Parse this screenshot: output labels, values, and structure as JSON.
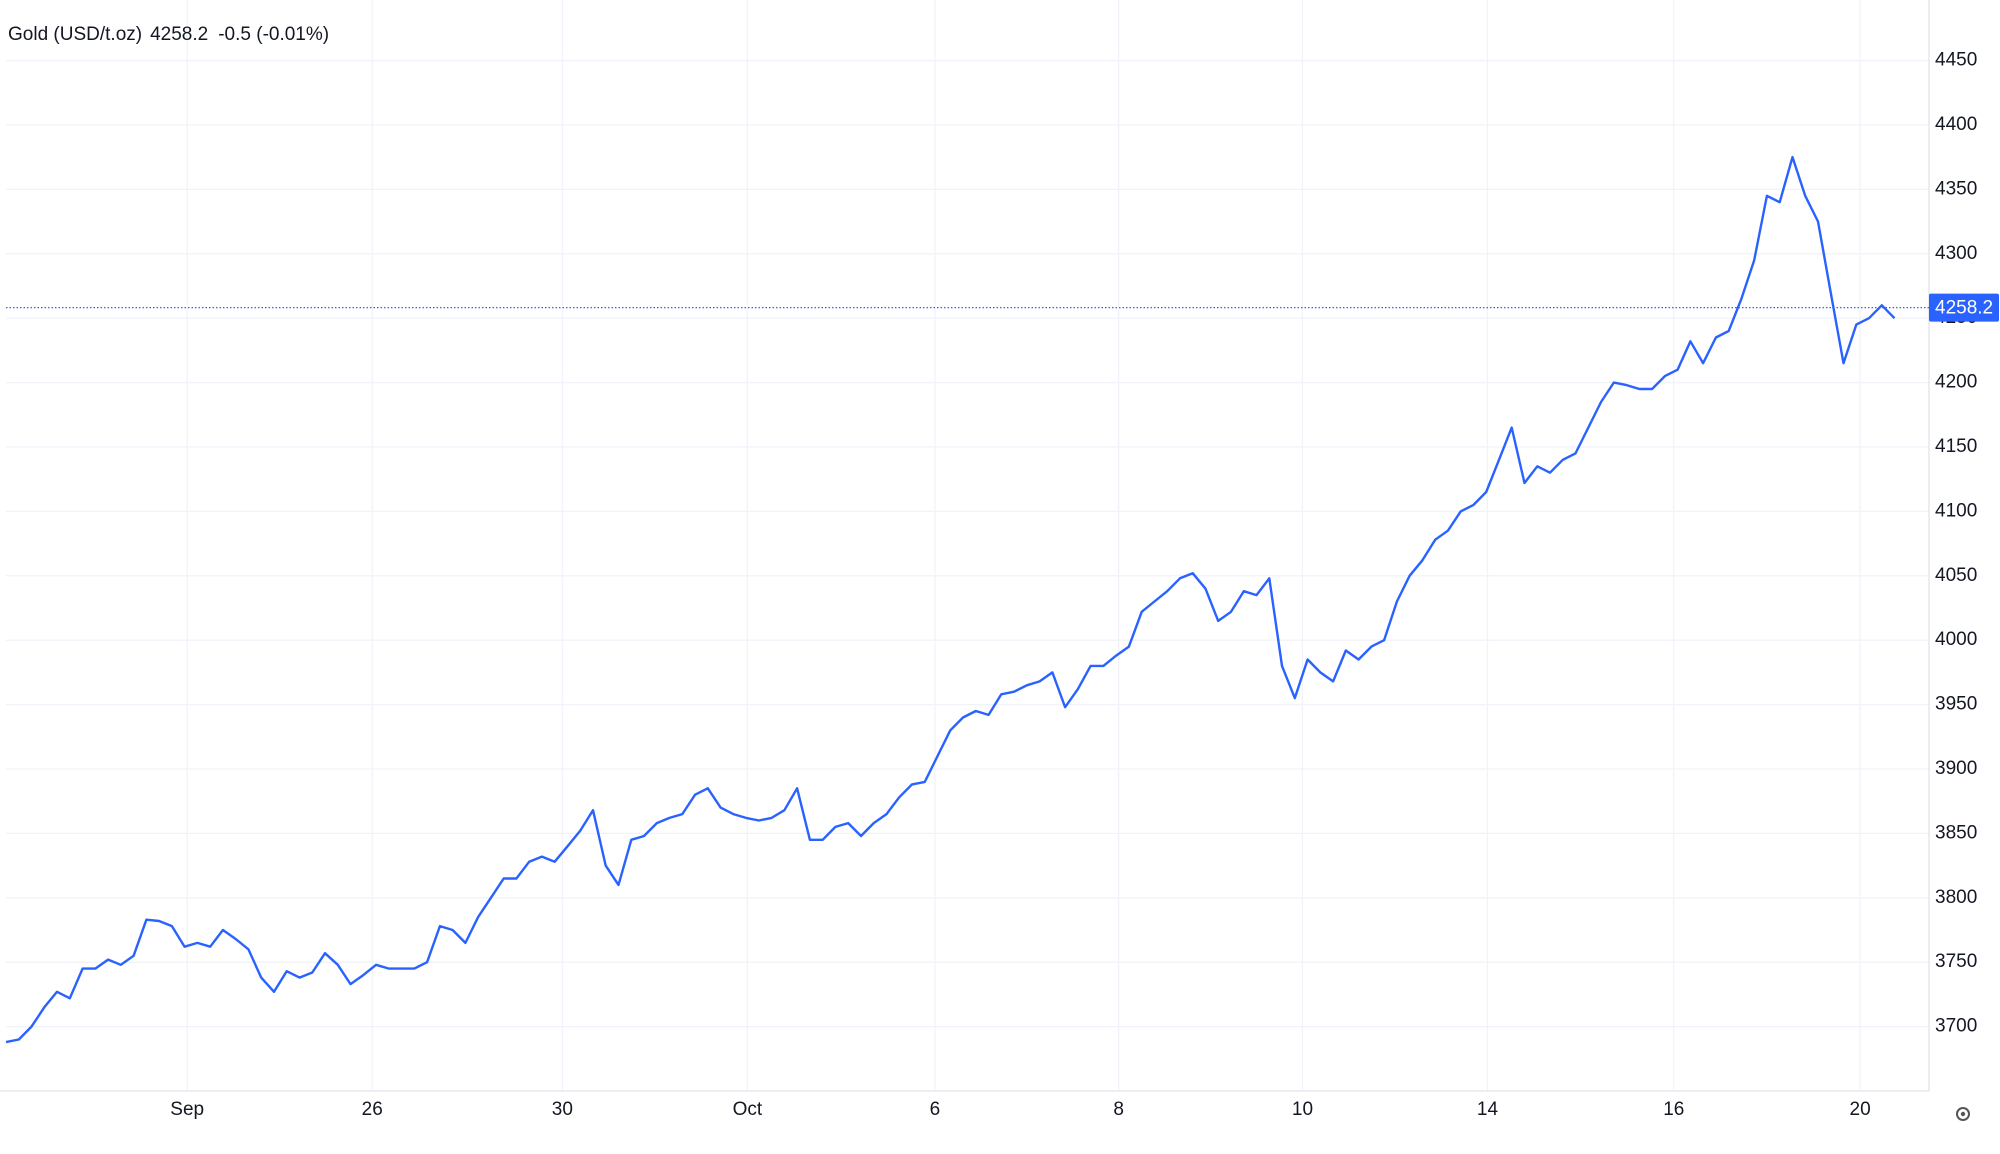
{
  "chart_data": {
    "type": "line",
    "title": "Gold (USD/t.oz)",
    "last_price": 4258.2,
    "change_label": "-0.5 (-0.01%)",
    "color": "#2962ff",
    "change_color": "#e53935",
    "values": [
      3688,
      3690,
      3700,
      3715,
      3727,
      3722,
      3745,
      3745,
      3752,
      3748,
      3755,
      3783,
      3782,
      3778,
      3762,
      3765,
      3762,
      3775,
      3768,
      3760,
      3738,
      3727,
      3743,
      3738,
      3742,
      3757,
      3748,
      3733,
      3740,
      3748,
      3745,
      3745,
      3745,
      3750,
      3778,
      3775,
      3765,
      3785,
      3800,
      3815,
      3815,
      3828,
      3832,
      3828,
      3840,
      3852,
      3868,
      3825,
      3810,
      3845,
      3848,
      3858,
      3862,
      3865,
      3880,
      3885,
      3870,
      3865,
      3862,
      3860,
      3862,
      3868,
      3885,
      3845,
      3845,
      3855,
      3858,
      3848,
      3858,
      3865,
      3878,
      3888,
      3890,
      3910,
      3930,
      3940,
      3945,
      3942,
      3958,
      3960,
      3965,
      3968,
      3975,
      3948,
      3962,
      3980,
      3980,
      3988,
      3995,
      4022,
      4030,
      4038,
      4048,
      4052,
      4040,
      4015,
      4022,
      4038,
      4035,
      4048,
      3980,
      3955,
      3985,
      3975,
      3968,
      3992,
      3985,
      3995,
      4000,
      4030,
      4050,
      4062,
      4078,
      4085,
      4100,
      4105,
      4115,
      4140,
      4165,
      4122,
      4135,
      4130,
      4140,
      4145,
      4165,
      4185,
      4200,
      4198,
      4195,
      4195,
      4205,
      4210,
      4232,
      4215,
      4235,
      4240,
      4265,
      4295,
      4345,
      4340,
      4375,
      4345,
      4325,
      4270,
      4215,
      4245,
      4250,
      4260,
      4250
    ],
    "xlim": [
      0,
      150.7
    ],
    "xticks": [
      {
        "value": 14.2,
        "label": "Sep"
      },
      {
        "value": 28.7,
        "label": "26"
      },
      {
        "value": 43.6,
        "label": "30"
      },
      {
        "value": 58.1,
        "label": "Oct"
      },
      {
        "value": 72.8,
        "label": "6"
      },
      {
        "value": 87.2,
        "label": "8"
      },
      {
        "value": 101.6,
        "label": "10"
      },
      {
        "value": 116.1,
        "label": "14"
      },
      {
        "value": 130.7,
        "label": "16"
      },
      {
        "value": 145.3,
        "label": "20"
      }
    ],
    "ylim": [
      3650,
      4497
    ],
    "yticks": [
      3700,
      3750,
      3800,
      3850,
      3900,
      3950,
      4000,
      4050,
      4100,
      4150,
      4200,
      4250,
      4300,
      4350,
      4400,
      4450
    ],
    "grid": true
  }
}
